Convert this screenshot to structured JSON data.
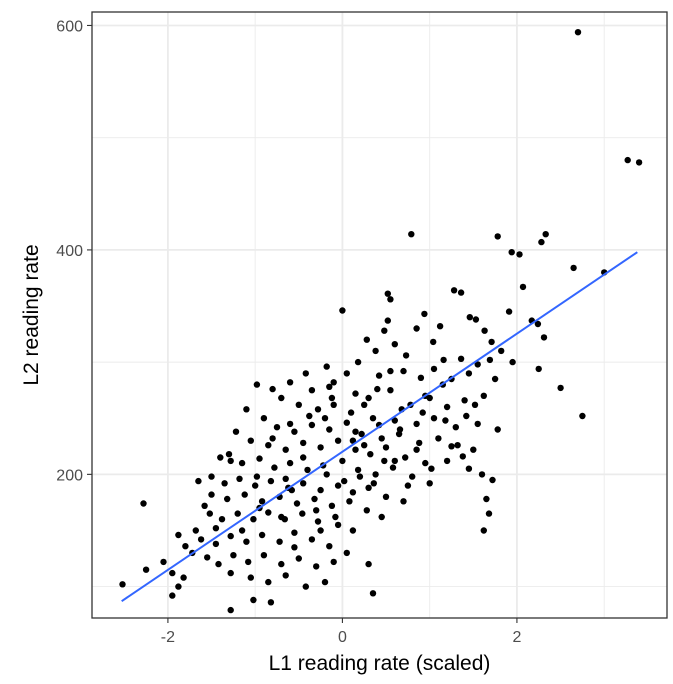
{
  "chart_data": {
    "type": "scatter",
    "title": "",
    "xlabel": "L1 reading rate (scaled)",
    "ylabel": "L2 reading rate",
    "xlim": [
      -2.87,
      3.72
    ],
    "ylim": [
      72,
      612
    ],
    "x_ticks": [
      -2,
      0,
      2
    ],
    "y_ticks": [
      200,
      400,
      600
    ],
    "x_minor_ticks": [
      -3,
      -1,
      1,
      3
    ],
    "y_minor_ticks": [
      100,
      300,
      500
    ],
    "x_tick_labels": [
      "-2",
      "0",
      "2"
    ],
    "y_tick_labels": [
      "200",
      "400",
      "600"
    ],
    "grid": true,
    "legend": "none",
    "colors": {
      "points": "#000000",
      "fit_line": "#3366FF",
      "grid": "#ebebeb",
      "panel_border": "#333333"
    },
    "fit_line": {
      "x": [
        -2.53,
        3.38
      ],
      "y": [
        87,
        398
      ]
    },
    "points": [
      [
        2.7,
        594
      ],
      [
        3.27,
        480
      ],
      [
        3.4,
        478
      ],
      [
        0.79,
        414
      ],
      [
        2.33,
        414
      ],
      [
        1.78,
        412
      ],
      [
        2.28,
        407
      ],
      [
        1.94,
        398
      ],
      [
        2.03,
        396
      ],
      [
        2.65,
        384
      ],
      [
        3.0,
        380
      ],
      [
        2.07,
        367
      ],
      [
        0.52,
        361
      ],
      [
        0.55,
        356
      ],
      [
        1.28,
        364
      ],
      [
        1.36,
        362
      ],
      [
        1.46,
        340
      ],
      [
        1.53,
        338
      ],
      [
        1.91,
        345
      ],
      [
        2.17,
        337
      ],
      [
        2.24,
        334
      ],
      [
        2.31,
        322
      ],
      [
        1.63,
        328
      ],
      [
        1.71,
        318
      ],
      [
        1.82,
        310
      ],
      [
        1.95,
        300
      ],
      [
        0.0,
        346
      ],
      [
        0.52,
        337
      ],
      [
        0.94,
        343
      ],
      [
        1.12,
        332
      ],
      [
        0.48,
        328
      ],
      [
        0.85,
        330
      ],
      [
        1.04,
        318
      ],
      [
        0.28,
        320
      ],
      [
        0.38,
        310
      ],
      [
        0.6,
        316
      ],
      [
        0.73,
        306
      ],
      [
        1.16,
        302
      ],
      [
        1.36,
        303
      ],
      [
        1.55,
        298
      ],
      [
        1.69,
        302
      ],
      [
        0.18,
        300
      ],
      [
        -0.18,
        296
      ],
      [
        0.05,
        290
      ],
      [
        0.42,
        288
      ],
      [
        0.7,
        292
      ],
      [
        0.9,
        286
      ],
      [
        1.05,
        294
      ],
      [
        1.25,
        285
      ],
      [
        -0.42,
        290
      ],
      [
        -0.6,
        282
      ],
      [
        -0.8,
        276
      ],
      [
        -0.98,
        280
      ],
      [
        -0.35,
        275
      ],
      [
        -0.15,
        278
      ],
      [
        0.15,
        272
      ],
      [
        0.3,
        268
      ],
      [
        0.55,
        275
      ],
      [
        0.78,
        262
      ],
      [
        1.0,
        268
      ],
      [
        1.2,
        260
      ],
      [
        1.4,
        266
      ],
      [
        1.62,
        270
      ],
      [
        1.42,
        252
      ],
      [
        -0.7,
        268
      ],
      [
        -0.5,
        262
      ],
      [
        -0.28,
        258
      ],
      [
        -0.1,
        262
      ],
      [
        0.1,
        255
      ],
      [
        0.35,
        250
      ],
      [
        0.6,
        248
      ],
      [
        0.85,
        245
      ],
      [
        1.05,
        250
      ],
      [
        1.3,
        242
      ],
      [
        1.55,
        245
      ],
      [
        1.78,
        240
      ],
      [
        2.25,
        294
      ],
      [
        2.5,
        277
      ],
      [
        2.75,
        252
      ],
      [
        -1.1,
        258
      ],
      [
        -0.9,
        250
      ],
      [
        -0.75,
        242
      ],
      [
        -0.55,
        238
      ],
      [
        -0.35,
        244
      ],
      [
        -0.15,
        240
      ],
      [
        0.05,
        246
      ],
      [
        0.22,
        236
      ],
      [
        0.45,
        232
      ],
      [
        0.65,
        236
      ],
      [
        0.88,
        228
      ],
      [
        1.1,
        232
      ],
      [
        1.32,
        226
      ],
      [
        1.5,
        222
      ],
      [
        -1.22,
        238
      ],
      [
        -1.05,
        230
      ],
      [
        -0.85,
        226
      ],
      [
        -0.65,
        222
      ],
      [
        -0.45,
        228
      ],
      [
        -0.25,
        224
      ],
      [
        -0.05,
        230
      ],
      [
        0.15,
        222
      ],
      [
        0.32,
        218
      ],
      [
        0.5,
        224
      ],
      [
        0.72,
        215
      ],
      [
        0.95,
        210
      ],
      [
        1.2,
        212
      ],
      [
        1.45,
        205
      ],
      [
        1.6,
        200
      ],
      [
        1.72,
        195
      ],
      [
        1.65,
        178
      ],
      [
        1.68,
        165
      ],
      [
        1.62,
        150
      ],
      [
        -1.3,
        218
      ],
      [
        -1.28,
        212
      ],
      [
        -1.15,
        210
      ],
      [
        -0.95,
        214
      ],
      [
        -0.78,
        206
      ],
      [
        -0.6,
        210
      ],
      [
        -0.4,
        204
      ],
      [
        -0.22,
        208
      ],
      [
        0.0,
        212
      ],
      [
        0.18,
        204
      ],
      [
        0.38,
        200
      ],
      [
        0.58,
        206
      ],
      [
        0.8,
        198
      ],
      [
        1.0,
        192
      ],
      [
        -1.5,
        198
      ],
      [
        -1.35,
        192
      ],
      [
        -1.18,
        196
      ],
      [
        -1.0,
        190
      ],
      [
        -0.82,
        194
      ],
      [
        -0.62,
        188
      ],
      [
        -0.45,
        192
      ],
      [
        -0.25,
        186
      ],
      [
        -0.05,
        190
      ],
      [
        0.12,
        184
      ],
      [
        0.3,
        188
      ],
      [
        0.5,
        180
      ],
      [
        0.7,
        176
      ],
      [
        -1.65,
        194
      ],
      [
        -1.5,
        182
      ],
      [
        -1.32,
        178
      ],
      [
        -1.12,
        182
      ],
      [
        -0.92,
        176
      ],
      [
        -0.72,
        180
      ],
      [
        -0.52,
        174
      ],
      [
        -0.32,
        178
      ],
      [
        -0.12,
        172
      ],
      [
        0.08,
        176
      ],
      [
        0.28,
        168
      ],
      [
        0.45,
        162
      ],
      [
        -2.28,
        174
      ],
      [
        -1.88,
        146
      ],
      [
        -1.8,
        136
      ],
      [
        -1.68,
        150
      ],
      [
        -1.52,
        165
      ],
      [
        -1.38,
        160
      ],
      [
        -1.2,
        165
      ],
      [
        -1.02,
        160
      ],
      [
        -0.85,
        166
      ],
      [
        -0.66,
        160
      ],
      [
        -0.46,
        165
      ],
      [
        -0.28,
        158
      ],
      [
        -0.08,
        162
      ],
      [
        0.12,
        150
      ],
      [
        -1.62,
        142
      ],
      [
        -1.45,
        138
      ],
      [
        -1.28,
        145
      ],
      [
        -1.1,
        140
      ],
      [
        -0.92,
        146
      ],
      [
        -0.72,
        140
      ],
      [
        -0.55,
        135
      ],
      [
        -0.35,
        142
      ],
      [
        -0.15,
        136
      ],
      [
        0.05,
        130
      ],
      [
        -1.55,
        126
      ],
      [
        -1.42,
        120
      ],
      [
        -1.25,
        128
      ],
      [
        -1.08,
        122
      ],
      [
        -0.9,
        128
      ],
      [
        -0.7,
        120
      ],
      [
        -0.5,
        125
      ],
      [
        -0.3,
        118
      ],
      [
        -0.1,
        122
      ],
      [
        0.3,
        120
      ],
      [
        -2.52,
        102
      ],
      [
        -2.25,
        115
      ],
      [
        -1.95,
        112
      ],
      [
        -1.88,
        100
      ],
      [
        -1.82,
        108
      ],
      [
        -1.95,
        92
      ],
      [
        -1.28,
        112
      ],
      [
        -1.05,
        108
      ],
      [
        -0.85,
        104
      ],
      [
        -0.65,
        110
      ],
      [
        -0.42,
        100
      ],
      [
        -0.2,
        104
      ],
      [
        -1.02,
        88
      ],
      [
        -0.82,
        86
      ],
      [
        -1.28,
        79
      ],
      [
        0.35,
        94
      ],
      [
        -1.4,
        215
      ],
      [
        -0.6,
        245
      ],
      [
        -0.2,
        250
      ],
      [
        0.25,
        262
      ],
      [
        0.55,
        292
      ],
      [
        0.95,
        270
      ],
      [
        1.15,
        280
      ],
      [
        1.45,
        290
      ],
      [
        1.75,
        285
      ],
      [
        -0.1,
        282
      ],
      [
        0.4,
        276
      ],
      [
        -0.65,
        196
      ],
      [
        -0.45,
        215
      ],
      [
        0.15,
        238
      ],
      [
        0.6,
        212
      ],
      [
        0.85,
        222
      ],
      [
        1.25,
        225
      ],
      [
        -0.95,
        170
      ],
      [
        -0.7,
        162
      ],
      [
        -0.3,
        168
      ],
      [
        -0.05,
        155
      ],
      [
        0.2,
        198
      ],
      [
        0.42,
        244
      ],
      [
        0.68,
        258
      ],
      [
        -1.15,
        150
      ],
      [
        -0.55,
        148
      ],
      [
        -0.25,
        150
      ],
      [
        0.02,
        194
      ],
      [
        0.25,
        226
      ],
      [
        0.48,
        212
      ],
      [
        0.75,
        190
      ],
      [
        -0.8,
        232
      ],
      [
        -0.38,
        252
      ],
      [
        -0.12,
        268
      ],
      [
        0.12,
        230
      ],
      [
        0.66,
        240
      ],
      [
        1.02,
        205
      ],
      [
        1.38,
        216
      ],
      [
        -1.58,
        172
      ],
      [
        -1.72,
        130
      ],
      [
        -2.05,
        122
      ],
      [
        -1.45,
        152
      ],
      [
        -0.98,
        198
      ],
      [
        -0.58,
        186
      ],
      [
        -0.18,
        200
      ],
      [
        0.36,
        192
      ],
      [
        0.92,
        255
      ],
      [
        1.18,
        248
      ],
      [
        1.52,
        262
      ]
    ]
  }
}
